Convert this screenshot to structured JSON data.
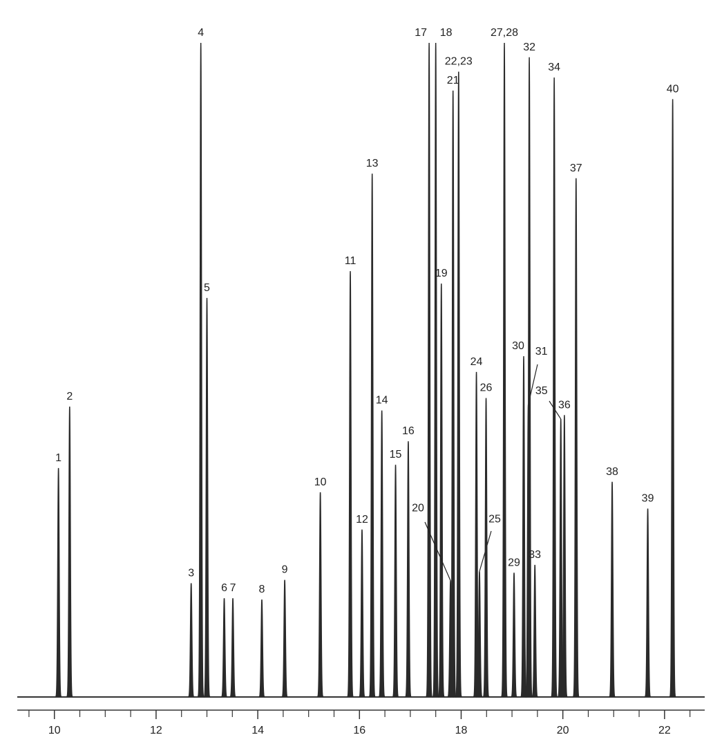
{
  "chart_data": {
    "type": "peaks",
    "color": "#2a2a2a",
    "x": [
      10.08,
      10.3,
      12.69,
      12.88,
      13.0,
      13.34,
      13.51,
      14.08,
      14.53,
      15.23,
      15.82,
      16.05,
      16.25,
      16.44,
      16.71,
      16.96,
      17.37,
      17.5,
      17.61,
      17.79,
      17.84,
      17.95,
      18.3,
      18.36,
      18.49,
      18.85,
      19.04,
      19.23,
      19.32,
      19.34,
      19.45,
      19.83,
      19.96,
      20.03,
      20.26,
      20.97,
      21.67,
      22.16
    ],
    "values": [
      35.0,
      44.4,
      17.4,
      100,
      61.0,
      15.1,
      15.1,
      14.9,
      17.9,
      31.3,
      65.1,
      25.6,
      80.0,
      43.8,
      35.5,
      39.1,
      100,
      100,
      63.2,
      17.8,
      92.7,
      95.6,
      49.7,
      19.2,
      45.7,
      100,
      19.0,
      52.1,
      44.7,
      97.8,
      20.2,
      94.7,
      42.5,
      43.1,
      79.3,
      32.9,
      28.8,
      91.4
    ],
    "labels": [
      "1",
      "2",
      "3",
      "4",
      "5",
      "6",
      "7",
      "8",
      "9",
      "10",
      "11",
      "12",
      "13",
      "14",
      "15",
      "16",
      "17",
      "18",
      "19",
      "20",
      "21",
      "22,23",
      "24",
      "25",
      "26",
      "27,28",
      "29",
      "30",
      "31",
      "32",
      "33",
      "34",
      "35",
      "36",
      "37",
      "38",
      "39",
      "40"
    ],
    "xlim": [
      9.27,
      22.79
    ],
    "ylim": [
      0,
      100
    ],
    "xticks": [
      10,
      12,
      14,
      16,
      18,
      20,
      22
    ],
    "xminorticks": [
      9.5,
      10.5,
      11,
      11.5,
      12.5,
      13,
      13.5,
      14.5,
      15,
      15.5,
      16.5,
      17,
      17.5,
      18.5,
      19,
      19.5,
      20.5,
      21,
      21.5,
      22.5
    ]
  }
}
